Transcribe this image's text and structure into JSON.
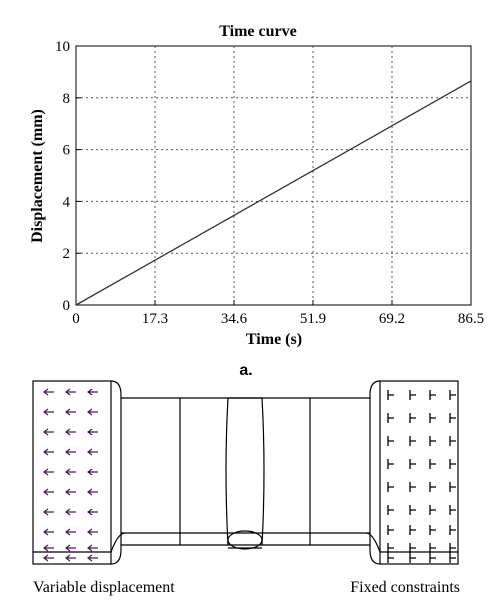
{
  "chart_data": {
    "type": "line",
    "title": "Time curve",
    "xlabel": "Time (s)",
    "ylabel": "Displacement (mm)",
    "xlim": [
      0,
      86.5
    ],
    "ylim": [
      0,
      10
    ],
    "xticks": [
      "0",
      "17.3",
      "34.6",
      "51.9",
      "69.2",
      "86.5"
    ],
    "yticks": [
      "0",
      "2",
      "4",
      "6",
      "8",
      "10"
    ],
    "grid": true,
    "series": [
      {
        "x": [
          0,
          86.5
        ],
        "y": [
          0,
          8.65
        ]
      }
    ]
  },
  "panel_a_label": "a.",
  "diagram": {
    "left_label": "Variable displacement",
    "right_label": "Fixed constraints"
  }
}
